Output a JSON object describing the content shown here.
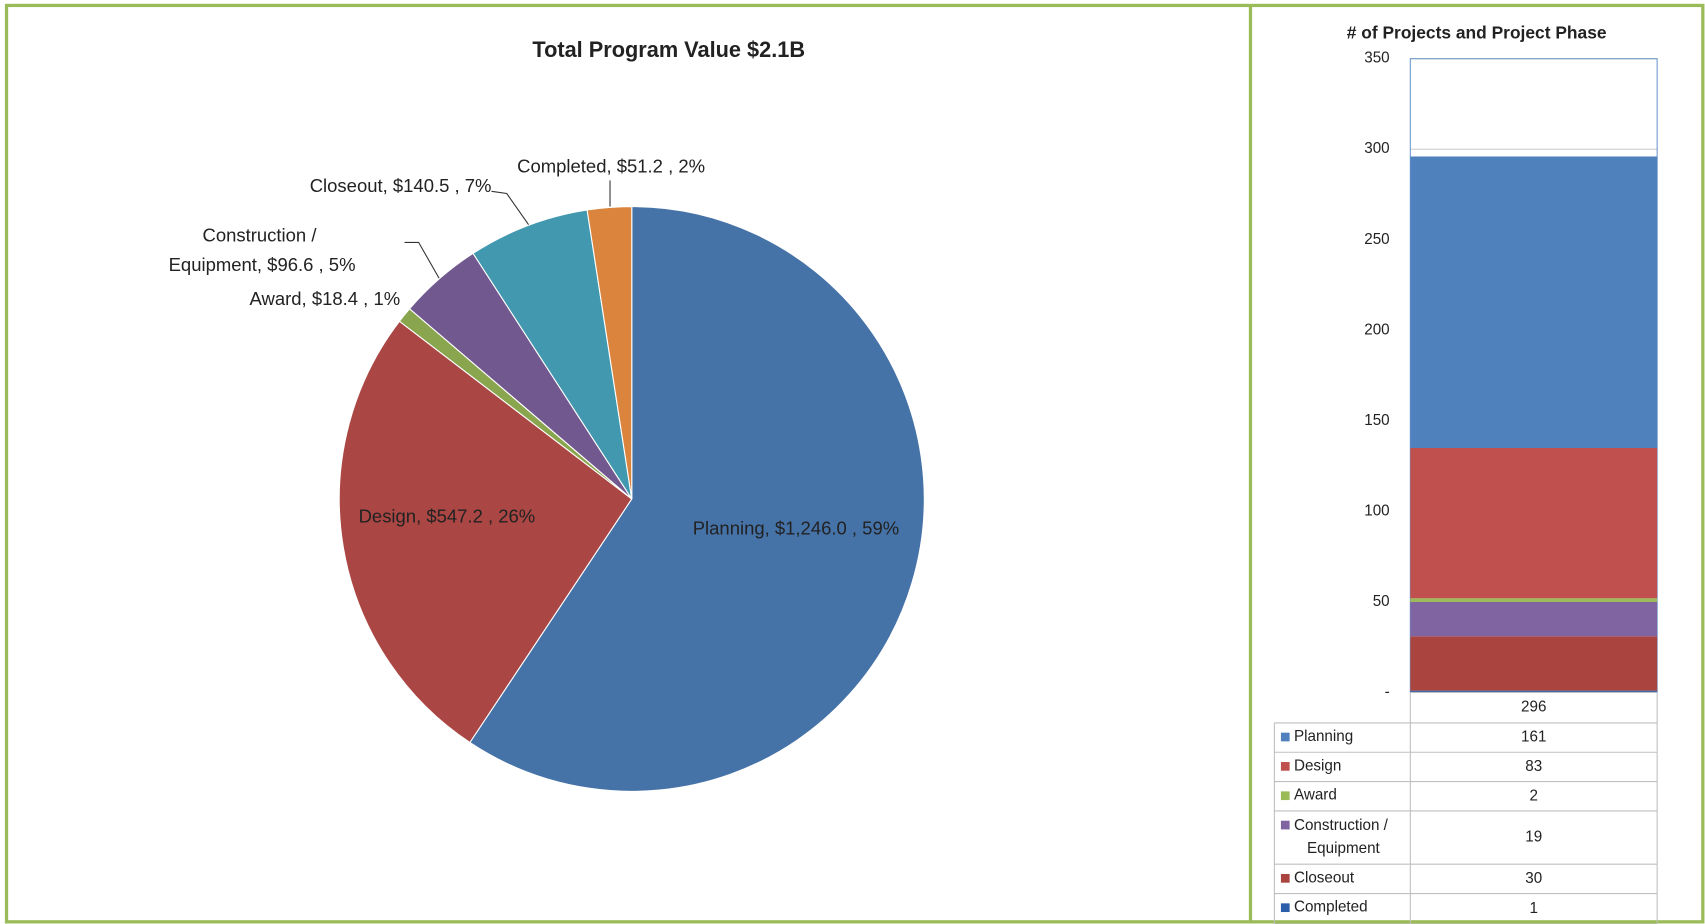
{
  "chart_data": [
    {
      "type": "pie",
      "title": "Total Program Value $2.1B",
      "values": [
        1246.0,
        547.2,
        18.4,
        96.6,
        140.5,
        51.2
      ],
      "value_labels": [
        "Planning,  $1,246.0 , 59%",
        "Design,  $547.2 , 26%",
        "Award,  $18.4 , 1%",
        "Construction /  Equipment,  $96.6 , 5%",
        "Closeout,  $140.5 , 7%",
        "Completed,  $51.2 , 2%"
      ],
      "colors": [
        "#4572a7",
        "#aa4643",
        "#89a54e",
        "#71588f",
        "#4198af",
        "#db843d"
      ]
    },
    {
      "type": "stacked_bar",
      "title": "# of Projects and Project Phase",
      "categories": [
        "296"
      ],
      "series": [
        {
          "name": "Planning",
          "color": "#4f81bd",
          "values": [
            161
          ]
        },
        {
          "name": "Design",
          "color": "#c0504d",
          "values": [
            83
          ]
        },
        {
          "name": "Award",
          "color": "#9bbb59",
          "values": [
            2
          ]
        },
        {
          "name": "Construction / Equipment",
          "color": "#8064a2",
          "values": [
            19
          ]
        },
        {
          "name": "Closeout",
          "color": "#a9443f",
          "values": [
            30
          ]
        },
        {
          "name": "Completed",
          "color": "#2a5ea8",
          "values": [
            1
          ]
        }
      ],
      "ylim": [
        0,
        350
      ],
      "yticks": [
        {
          "value": 0,
          "label": "-"
        },
        50,
        100,
        150,
        200,
        250,
        300,
        350
      ],
      "grid": true,
      "data_table": true
    }
  ]
}
